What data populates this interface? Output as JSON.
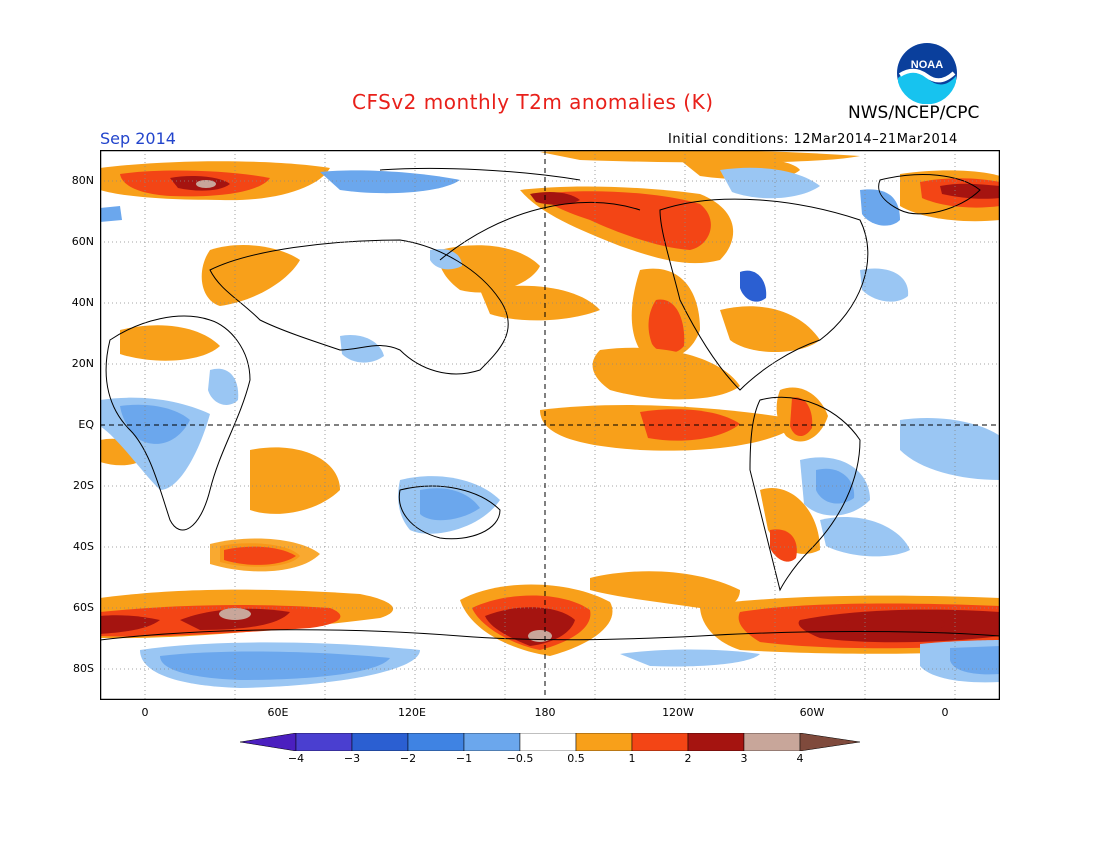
{
  "header": {
    "title": "CFSv2 monthly T2m anomalies (K)",
    "agency": "NWS/NCEP/CPC",
    "logo_text": "NOAA",
    "target_month": "Sep 2014",
    "initial_conditions": "Initial conditions: 12Mar2014–21Mar2014"
  },
  "axes": {
    "lat_labels": [
      "80N",
      "60N",
      "40N",
      "20N",
      "EQ",
      "20S",
      "40S",
      "60S",
      "80S"
    ],
    "lon_labels": [
      "0",
      "60E",
      "120E",
      "180",
      "120W",
      "60W",
      "0"
    ]
  },
  "colorbar": {
    "labels": [
      "−4",
      "−3",
      "−2",
      "−1",
      "−0.5",
      "0.5",
      "1",
      "2",
      "3",
      "4"
    ],
    "colors": [
      "#4b1fbf",
      "#2b5fd2",
      "#3f83e3",
      "#6ba7ed",
      "#9ac6f3",
      "#ffffff",
      "#f8a01a",
      "#f34515",
      "#a51410",
      "#c8a69a",
      "#7f4a3c"
    ]
  }
}
